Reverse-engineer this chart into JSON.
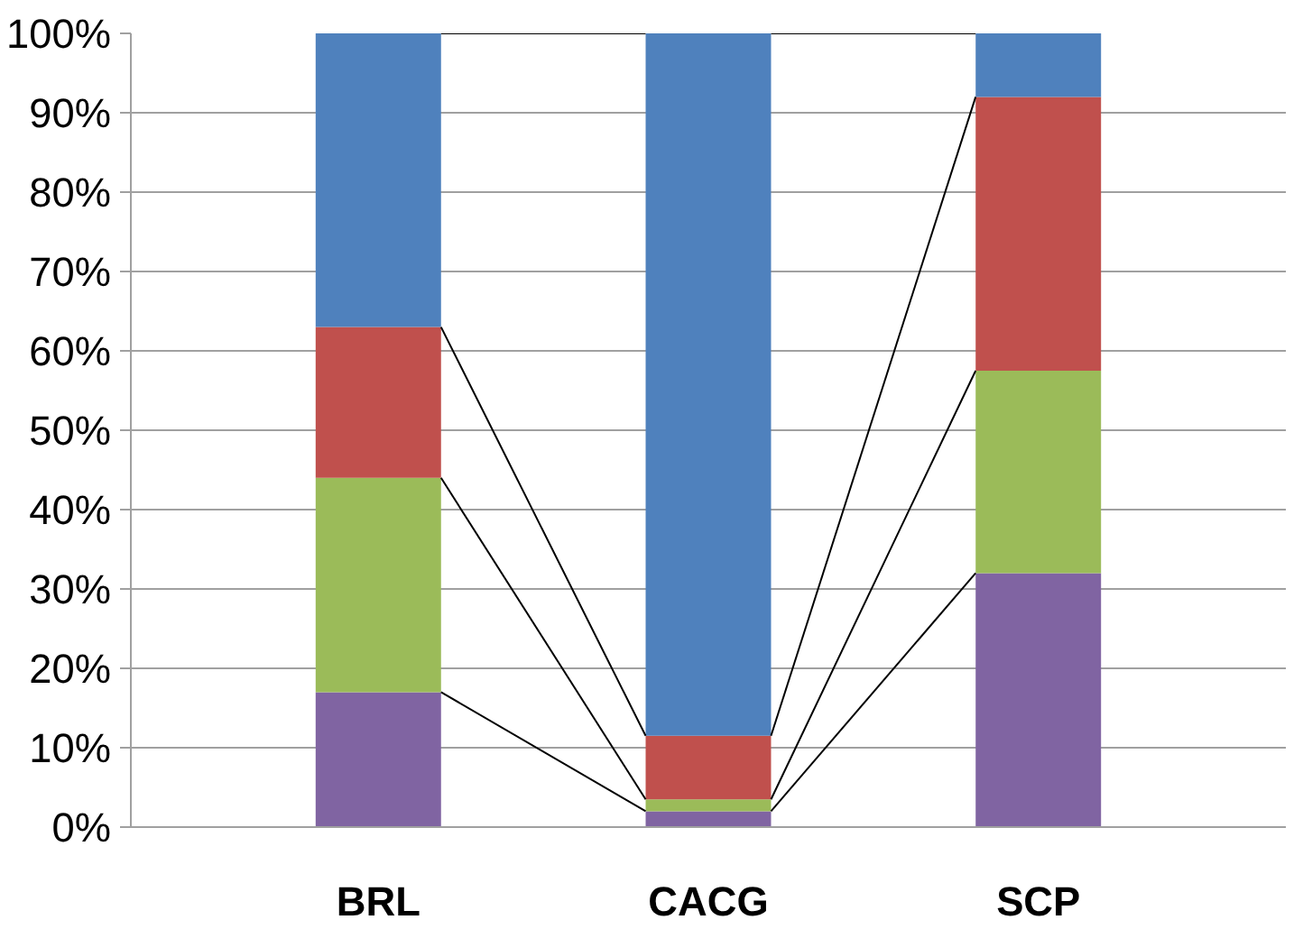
{
  "chart_data": {
    "type": "bar",
    "stacked": true,
    "categories": [
      "BRL",
      "CACG",
      "SCP"
    ],
    "series": [
      {
        "color": "#8064a2",
        "values": [
          17,
          2,
          32
        ]
      },
      {
        "color": "#9bbb59",
        "values": [
          27,
          1.5,
          25.5
        ]
      },
      {
        "color": "#c0504d",
        "values": [
          19,
          8,
          34.5
        ]
      },
      {
        "color": "#4f81bd",
        "values": [
          37,
          88.5,
          8
        ]
      }
    ],
    "ylim": [
      0,
      100
    ],
    "yticks": [
      {
        "value": 0,
        "label": "0%"
      },
      {
        "value": 10,
        "label": "10%"
      },
      {
        "value": 20,
        "label": "20%"
      },
      {
        "value": 30,
        "label": "30%"
      },
      {
        "value": 40,
        "label": "40%"
      },
      {
        "value": 50,
        "label": "50%"
      },
      {
        "value": 60,
        "label": "60%"
      },
      {
        "value": 70,
        "label": "70%"
      },
      {
        "value": 80,
        "label": "80%"
      },
      {
        "value": 90,
        "label": "90%"
      },
      {
        "value": 100,
        "label": "100%"
      }
    ],
    "grid": "y"
  }
}
